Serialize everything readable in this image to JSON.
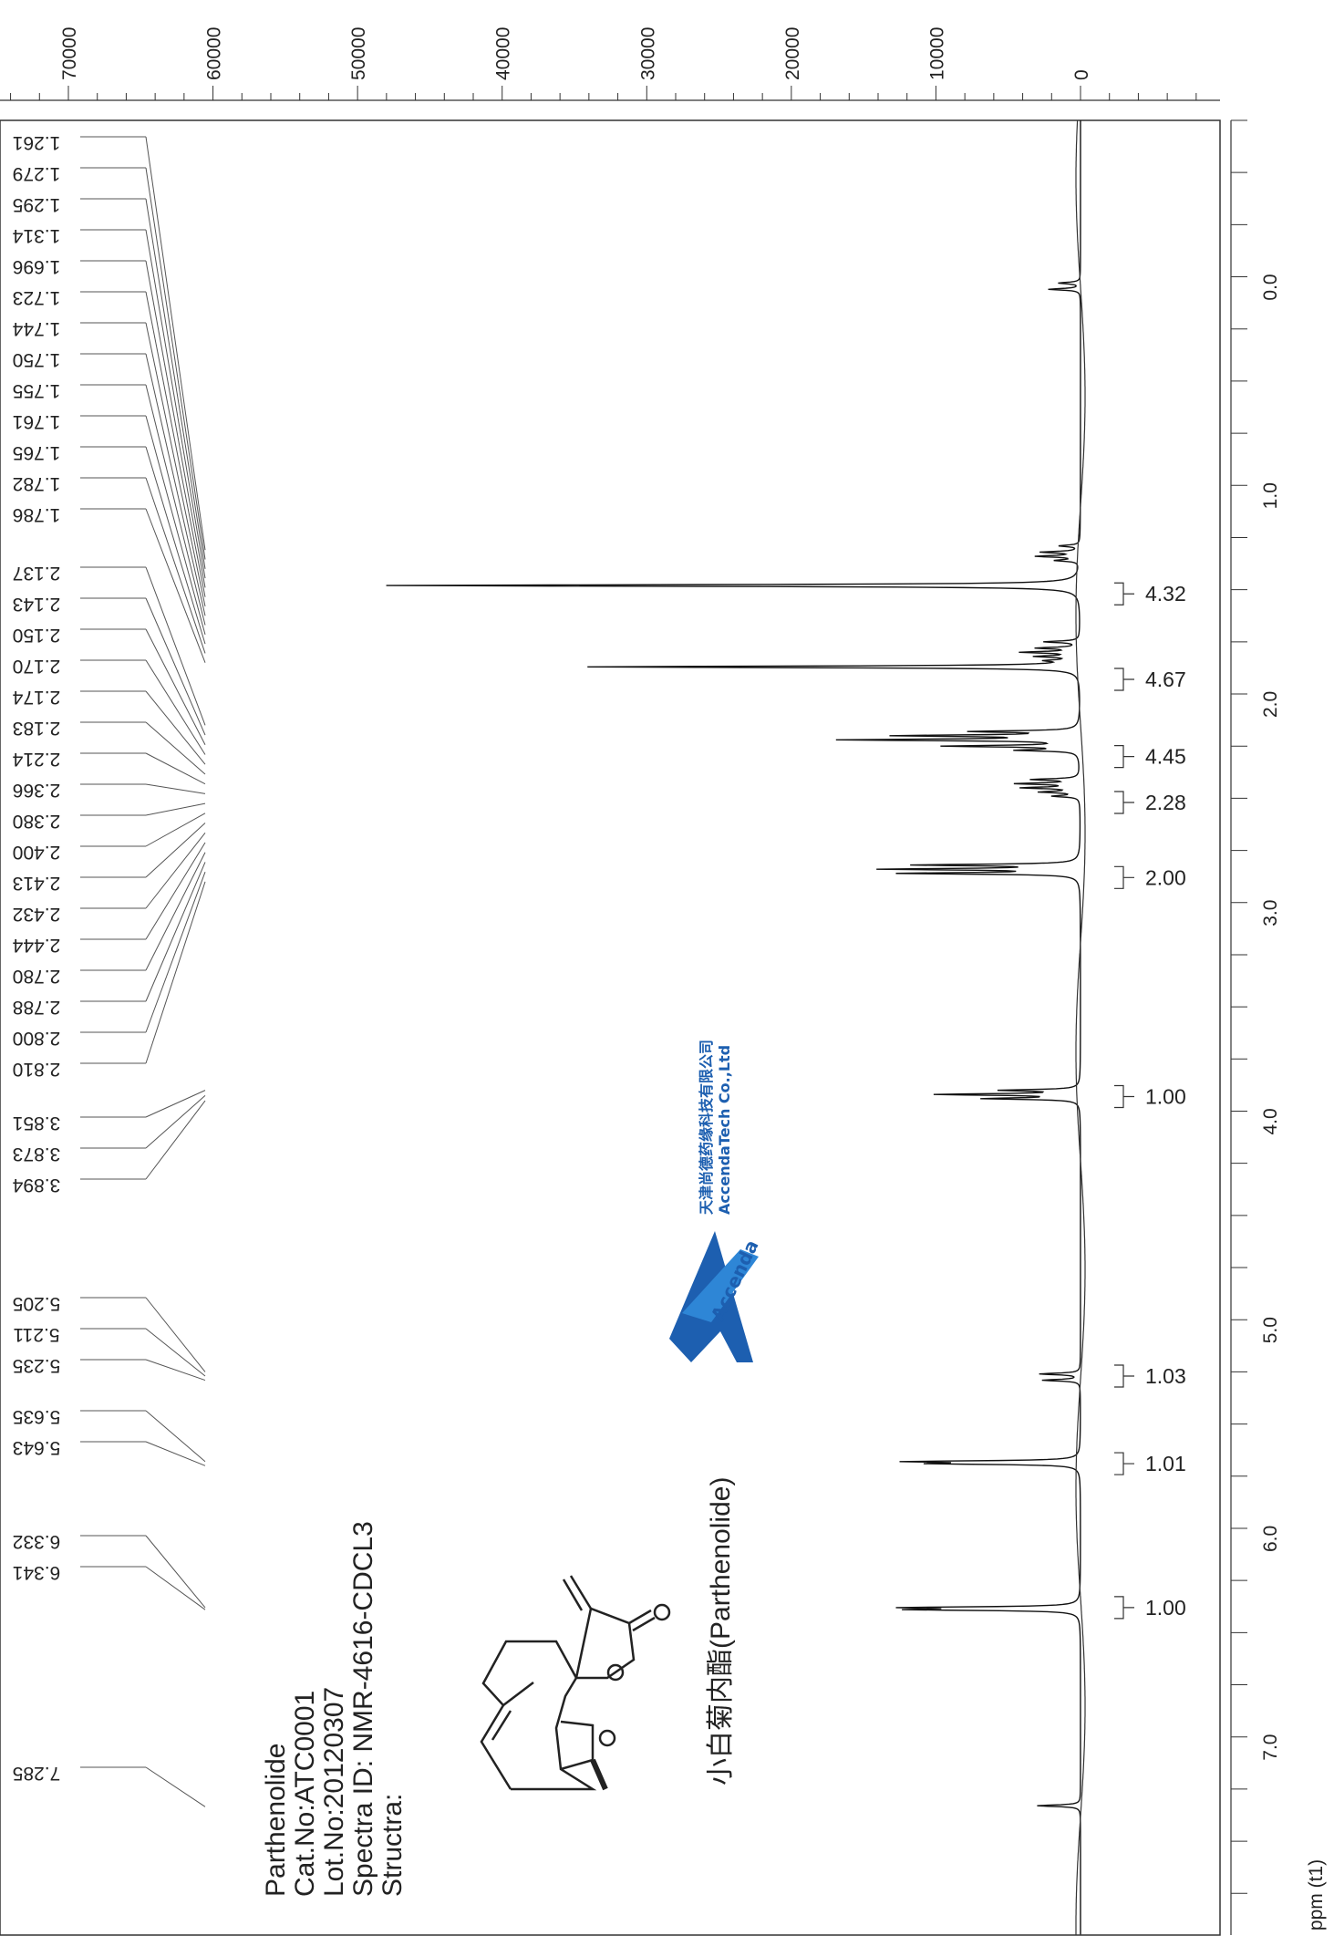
{
  "chart_data": {
    "type": "line",
    "xlabel": "ppm (t1)",
    "x_range": [
      -0.8,
      7.9
    ],
    "y_range": [
      0,
      72000
    ],
    "y_ticks": [
      0,
      10000,
      20000,
      30000,
      40000,
      50000,
      60000,
      70000
    ],
    "y_tick_labels": [
      "0",
      "10000",
      "20000",
      "30000",
      "40000",
      "50000",
      "60000",
      "70000"
    ],
    "x_ticks": [
      0.0,
      1.0,
      2.0,
      3.0,
      4.0,
      5.0,
      6.0,
      7.0
    ],
    "x_tick_labels": [
      "0.0",
      "1.0",
      "2.0",
      "3.0",
      "4.0",
      "5.0",
      "6.0",
      "7.0"
    ],
    "peak_labels": [
      "1.261",
      "1.279",
      "1.295",
      "1.314",
      "1.696",
      "1.723",
      "1.744",
      "1.750",
      "1.755",
      "1.761",
      "1.765",
      "1.782",
      "1.786",
      "2.137",
      "2.143",
      "2.150",
      "2.170",
      "2.174",
      "2.183",
      "2.214",
      "2.366",
      "2.380",
      "2.400",
      "2.413",
      "2.432",
      "2.444",
      "2.780",
      "2.788",
      "2.800",
      "2.810",
      "3.851",
      "3.873",
      "3.894",
      "5.205",
      "5.211",
      "5.235",
      "5.635",
      "5.643",
      "6.332",
      "6.341",
      "7.285"
    ],
    "peak_groups": [
      {
        "labels": [
          0,
          12
        ],
        "ppm": [
          1.26,
          1.8
        ]
      },
      {
        "labels": [
          13,
          29
        ],
        "ppm": [
          2.1,
          2.85
        ]
      },
      {
        "labels": [
          30,
          32
        ],
        "ppm": [
          3.85,
          3.9
        ]
      },
      {
        "labels": [
          33,
          35
        ],
        "ppm": [
          5.2,
          5.24
        ]
      },
      {
        "labels": [
          36,
          37
        ],
        "ppm": [
          5.63,
          5.65
        ]
      },
      {
        "labels": [
          38,
          39
        ],
        "ppm": [
          6.33,
          6.34
        ]
      },
      {
        "labels": [
          40,
          40
        ],
        "ppm": [
          7.28,
          7.29
        ]
      }
    ],
    "peaks": [
      {
        "ppm": -0.02,
        "h": 1500
      },
      {
        "ppm": 0.01,
        "h": 2200
      },
      {
        "ppm": 1.24,
        "h": 1400
      },
      {
        "ppm": 1.27,
        "h": 2600
      },
      {
        "ppm": 1.29,
        "h": 2900
      },
      {
        "ppm": 1.31,
        "h": 1600
      },
      {
        "ppm": 1.43,
        "h": 48000
      },
      {
        "ppm": 1.7,
        "h": 2400
      },
      {
        "ppm": 1.73,
        "h": 2800
      },
      {
        "ppm": 1.75,
        "h": 3800
      },
      {
        "ppm": 1.77,
        "h": 2700
      },
      {
        "ppm": 1.79,
        "h": 1700
      },
      {
        "ppm": 1.82,
        "h": 34000
      },
      {
        "ppm": 2.13,
        "h": 7000
      },
      {
        "ppm": 2.15,
        "h": 12000
      },
      {
        "ppm": 2.17,
        "h": 16000
      },
      {
        "ppm": 2.2,
        "h": 9000
      },
      {
        "ppm": 2.22,
        "h": 4000
      },
      {
        "ppm": 2.36,
        "h": 3200
      },
      {
        "ppm": 2.38,
        "h": 4200
      },
      {
        "ppm": 2.4,
        "h": 3800
      },
      {
        "ppm": 2.42,
        "h": 2600
      },
      {
        "ppm": 2.44,
        "h": 1800
      },
      {
        "ppm": 2.77,
        "h": 11000
      },
      {
        "ppm": 2.79,
        "h": 13000
      },
      {
        "ppm": 2.81,
        "h": 12000
      },
      {
        "ppm": 3.85,
        "h": 5200
      },
      {
        "ppm": 3.87,
        "h": 9600
      },
      {
        "ppm": 3.89,
        "h": 6400
      },
      {
        "ppm": 5.21,
        "h": 2800
      },
      {
        "ppm": 5.24,
        "h": 2600
      },
      {
        "ppm": 5.63,
        "h": 11000
      },
      {
        "ppm": 5.64,
        "h": 9000
      },
      {
        "ppm": 6.33,
        "h": 11000
      },
      {
        "ppm": 6.34,
        "h": 10500
      },
      {
        "ppm": 7.28,
        "h": 3000
      }
    ],
    "integrals": [
      {
        "label": "4.32",
        "ppm": 1.47
      },
      {
        "label": "4.67",
        "ppm": 1.88
      },
      {
        "label": "4.45",
        "ppm": 2.25
      },
      {
        "label": "2.28",
        "ppm": 2.47
      },
      {
        "label": "2.00",
        "ppm": 2.83
      },
      {
        "label": "1.00",
        "ppm": 3.88
      },
      {
        "label": "1.03",
        "ppm": 5.22
      },
      {
        "label": "1.01",
        "ppm": 5.64
      },
      {
        "label": "1.00",
        "ppm": 6.33
      }
    ]
  },
  "sample": {
    "name": "Parthenolide",
    "cat_no": "Cat.No:ATC0001",
    "lot_no": "Lot.No:20120307",
    "spectra_id": "Spectra ID: NMR-4616-CDCL3",
    "structure_label": "Structra:",
    "chinese_name": "小白菊内酯(Parthenolide)"
  },
  "logo": {
    "word": "Accenda",
    "company_cn": "天津尚德药缘科技有限公司",
    "company_en": "AccendaTech Co.,Ltd",
    "color": "#1d5fb0"
  }
}
